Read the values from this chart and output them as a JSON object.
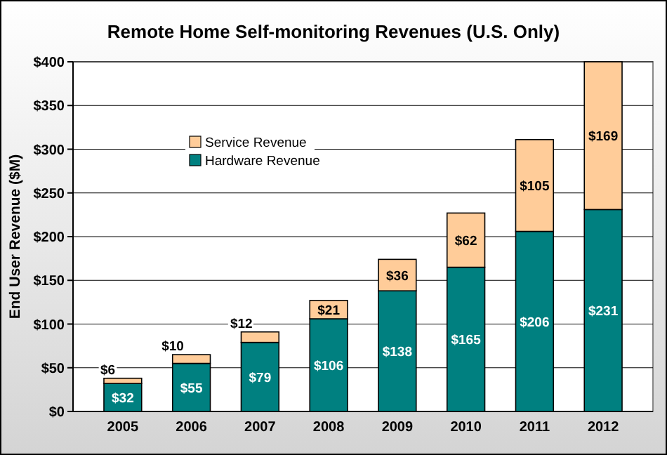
{
  "chart_data": {
    "type": "bar",
    "title": "Remote Home Self-monitoring Revenues (U.S. Only)",
    "ylabel": "End User Revenue ($M)",
    "categories": [
      "2005",
      "2006",
      "2007",
      "2008",
      "2009",
      "2010",
      "2011",
      "2012"
    ],
    "stacked": true,
    "series": [
      {
        "name": "Hardware Revenue",
        "color": "#008080",
        "values": [
          32,
          55,
          79,
          106,
          138,
          165,
          206,
          231
        ],
        "value_labels": [
          "$32",
          "$55",
          "$79",
          "$106",
          "$138",
          "$165",
          "$206",
          "$231"
        ]
      },
      {
        "name": "Service Revenue",
        "color": "#ffcc99",
        "values": [
          6,
          10,
          12,
          21,
          36,
          62,
          105,
          169
        ],
        "value_labels": [
          "$6",
          "$10",
          "$12",
          "$21",
          "$36",
          "$62",
          "$105",
          "$169"
        ]
      }
    ],
    "ylim": [
      0,
      400
    ],
    "yticks": [
      {
        "value": 0,
        "label": "$0"
      },
      {
        "value": 50,
        "label": "$50"
      },
      {
        "value": 100,
        "label": "$100"
      },
      {
        "value": 150,
        "label": "$150"
      },
      {
        "value": 200,
        "label": "$200"
      },
      {
        "value": 250,
        "label": "$250"
      },
      {
        "value": 300,
        "label": "$300"
      },
      {
        "value": 350,
        "label": "$350"
      },
      {
        "value": 400,
        "label": "$400"
      }
    ],
    "grid": "y",
    "legend": "top left"
  }
}
